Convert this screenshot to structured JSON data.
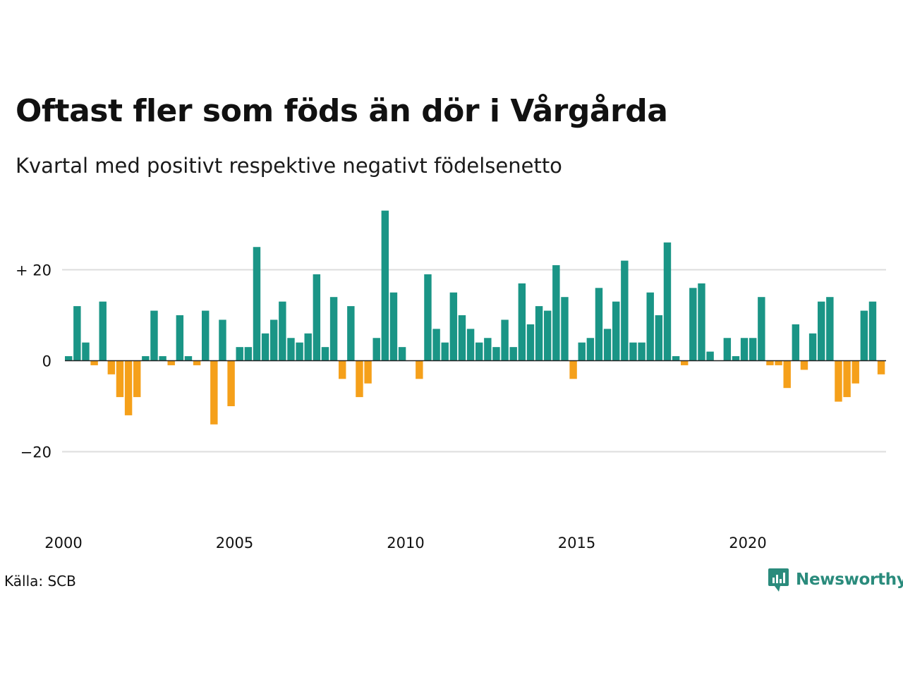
{
  "header": {
    "title": "Oftast fler som föds än dör i Vårgårda",
    "subtitle": "Kvartal med positivt respektive negativt födelsenetto"
  },
  "footer": {
    "source": "Källa: SCB",
    "brand": "Newsworthy"
  },
  "colors": {
    "positive": "#1a9586",
    "negative": "#f5a01a",
    "grid": "#dddddd",
    "zero_line": "#222222",
    "brand": "#2a8b7c"
  },
  "chart_data": {
    "type": "bar",
    "x_tick_labels": [
      "2000",
      "2005",
      "2010",
      "2015",
      "2020"
    ],
    "y_ticks": [
      {
        "value": 20,
        "label": "+ 20"
      },
      {
        "value": 0,
        "label": "0"
      },
      {
        "value": -20,
        "label": "−20"
      }
    ],
    "ylim": [
      -35,
      35
    ],
    "grid": true,
    "start": "2000 Q1",
    "frequency": "quarterly",
    "values": [
      1,
      12,
      4,
      -1,
      13,
      -3,
      -8,
      -12,
      -8,
      1,
      11,
      1,
      -1,
      10,
      1,
      -1,
      11,
      -14,
      9,
      -10,
      3,
      3,
      25,
      6,
      9,
      13,
      5,
      4,
      6,
      19,
      3,
      14,
      -4,
      12,
      -8,
      -5,
      5,
      33,
      15,
      3,
      0,
      -4,
      19,
      7,
      4,
      15,
      10,
      7,
      4,
      5,
      3,
      9,
      3,
      17,
      8,
      12,
      11,
      21,
      14,
      -4,
      4,
      5,
      16,
      7,
      13,
      22,
      4,
      4,
      15,
      10,
      26,
      1,
      -1,
      16,
      17,
      2,
      0,
      5,
      1,
      5,
      5,
      14,
      -1,
      -1,
      -6,
      8,
      -2,
      6,
      13,
      14,
      -9,
      -8,
      -5,
      11,
      13,
      -3
    ]
  }
}
